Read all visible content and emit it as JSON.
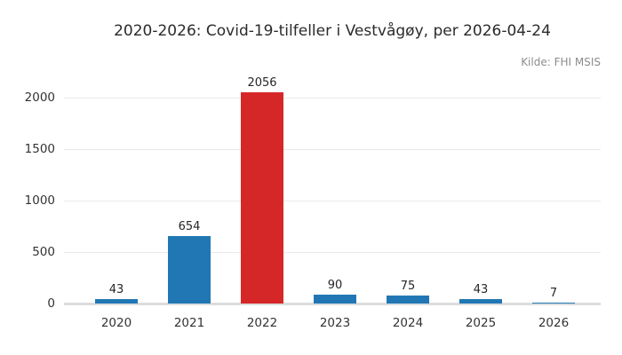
{
  "title": "2020-2026: Covid-19-tilfeller i Vestvågøy, per 2026-04-24",
  "source_note": "Kilde: FHI MSIS",
  "chart_data": {
    "type": "bar",
    "title": "2020-2026: Covid-19-tilfeller i Vestvågøy, per 2026-04-24",
    "annotation": "Kilde: FHI MSIS",
    "categories": [
      "2020",
      "2021",
      "2022",
      "2023",
      "2024",
      "2025",
      "2026"
    ],
    "values": [
      43,
      654,
      2056,
      90,
      75,
      43,
      7
    ],
    "bar_colors": [
      "#2077b4",
      "#2077b4",
      "#d62728",
      "#2077b4",
      "#2077b4",
      "#2077b4",
      "#2077b4"
    ],
    "default_color": "#2077b4",
    "highlight_color": "#d62728",
    "xlabel": "",
    "ylabel": "",
    "ylim": [
      0,
      2150
    ],
    "yticks": [
      0,
      500,
      1000,
      1500,
      2000
    ],
    "grid": true,
    "legend": false,
    "value_labels": true
  }
}
